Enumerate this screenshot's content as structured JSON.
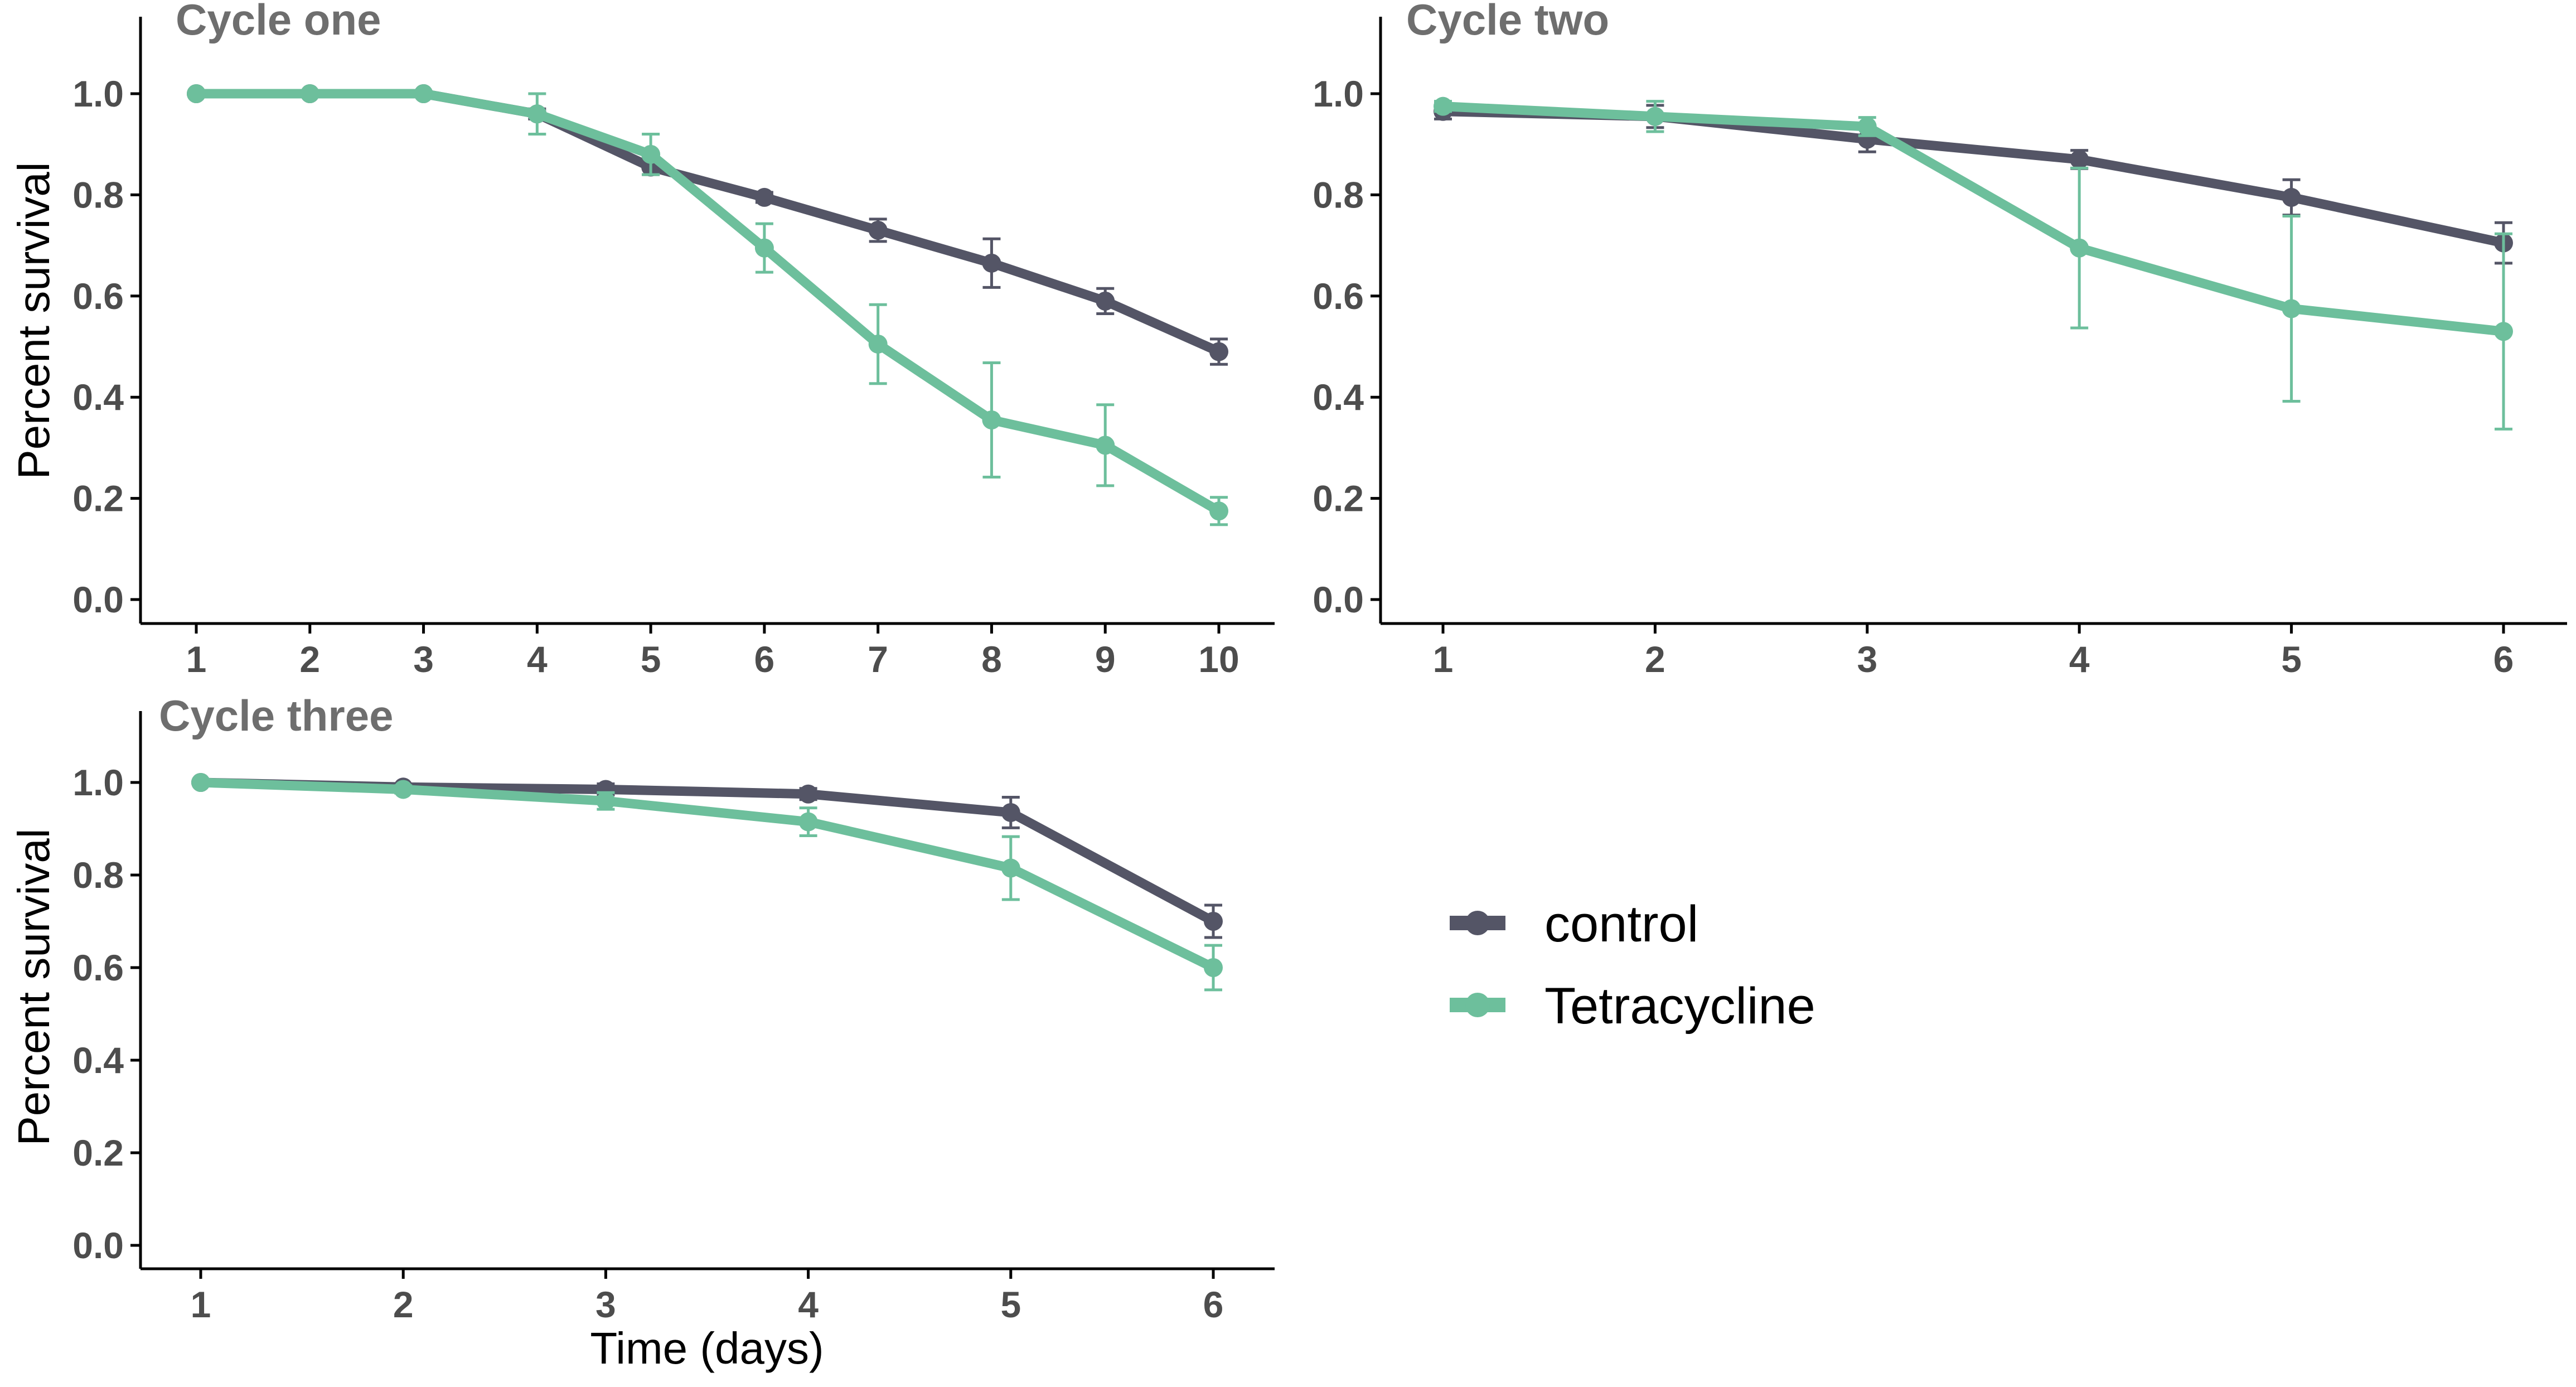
{
  "colors": {
    "control": "#545566",
    "tetracycline": "#6dbf9c",
    "title": "#6e6e6e",
    "tick_label": "#4d4d4d"
  },
  "y_axis_title": "Percent survival",
  "x_axis_title": "Time (days)",
  "legend": {
    "placement": "right-middle",
    "items": [
      {
        "key": "control",
        "label": "control"
      },
      {
        "key": "tetracycline",
        "label": "Tetracycline"
      }
    ]
  },
  "chart_data": [
    {
      "type": "line",
      "title": "Cycle one",
      "xlabel": "",
      "ylabel": "Percent survival",
      "x": [
        1,
        2,
        3,
        4,
        5,
        6,
        7,
        8,
        9,
        10
      ],
      "ylim": [
        0,
        1.0
      ],
      "yticks": [
        "0.0",
        "0.2",
        "0.4",
        "0.6",
        "0.8",
        "1.0"
      ],
      "series": [
        {
          "name": "control",
          "values": [
            1.0,
            1.0,
            1.0,
            0.96,
            0.855,
            0.795,
            0.73,
            0.665,
            0.59,
            0.49
          ],
          "errors": [
            0,
            0,
            0,
            0.01,
            0.015,
            0.01,
            0.022,
            0.048,
            0.025,
            0.025
          ]
        },
        {
          "name": "Tetracycline",
          "values": [
            1.0,
            1.0,
            1.0,
            0.96,
            0.88,
            0.695,
            0.505,
            0.355,
            0.305,
            0.175
          ],
          "errors": [
            0,
            0,
            0,
            0.04,
            0.04,
            0.048,
            0.078,
            0.113,
            0.08,
            0.027
          ]
        }
      ]
    },
    {
      "type": "line",
      "title": "Cycle two",
      "xlabel": "",
      "ylabel": "",
      "x": [
        1,
        2,
        3,
        4,
        5,
        6
      ],
      "ylim": [
        0,
        1.0
      ],
      "yticks": [
        "0.0",
        "0.2",
        "0.4",
        "0.6",
        "0.8",
        "1.0"
      ],
      "series": [
        {
          "name": "control",
          "values": [
            0.965,
            0.955,
            0.91,
            0.87,
            0.795,
            0.705
          ],
          "errors": [
            0.015,
            0.022,
            0.025,
            0.018,
            0.035,
            0.04
          ]
        },
        {
          "name": "Tetracycline",
          "values": [
            0.975,
            0.955,
            0.935,
            0.695,
            0.575,
            0.53
          ],
          "errors": [
            0.01,
            0.03,
            0.018,
            0.158,
            0.183,
            0.193
          ]
        }
      ]
    },
    {
      "type": "line",
      "title": "Cycle three",
      "xlabel": "Time (days)",
      "ylabel": "Percent survival",
      "x": [
        1,
        2,
        3,
        4,
        5,
        6
      ],
      "ylim": [
        0,
        1.0
      ],
      "yticks": [
        "0.0",
        "0.2",
        "0.4",
        "0.6",
        "0.8",
        "1.0"
      ],
      "series": [
        {
          "name": "control",
          "values": [
            1.0,
            0.99,
            0.985,
            0.975,
            0.935,
            0.7
          ],
          "errors": [
            0,
            0.005,
            0.012,
            0.012,
            0.033,
            0.035
          ]
        },
        {
          "name": "Tetracycline",
          "values": [
            1.0,
            0.985,
            0.96,
            0.915,
            0.815,
            0.6
          ],
          "errors": [
            0,
            0.008,
            0.018,
            0.03,
            0.068,
            0.048
          ]
        }
      ]
    }
  ]
}
